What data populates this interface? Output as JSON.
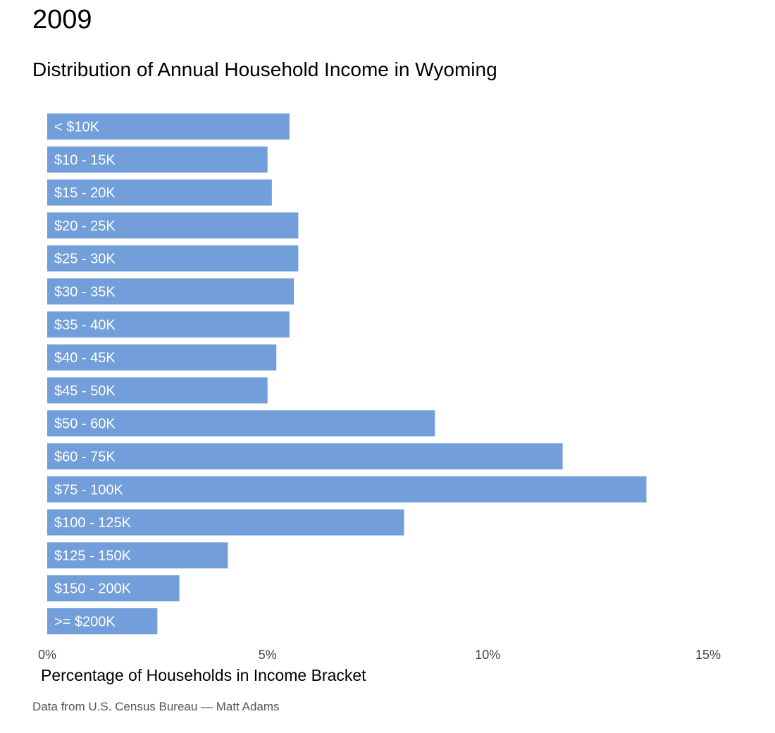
{
  "header": {
    "year": "2009",
    "title": "Distribution of Annual Household Income in Wyoming"
  },
  "footer": {
    "caption": "Data from U.S. Census Bureau — Matt Adams"
  },
  "colors": {
    "bar": "#729ed9",
    "bar_label": "#ffffff",
    "tick_label": "#444444",
    "axis_title": "#000000"
  },
  "chart_data": {
    "type": "bar",
    "orientation": "horizontal",
    "xlabel": "Percentage of Households in Income Bracket",
    "ylabel": "",
    "xlim": [
      0,
      15
    ],
    "x_ticks": [
      {
        "value": 0,
        "label": "0%"
      },
      {
        "value": 5,
        "label": "5%"
      },
      {
        "value": 10,
        "label": "10%"
      },
      {
        "value": 15,
        "label": "15%"
      }
    ],
    "grid": false,
    "categories": [
      "< $10K",
      "$10 - 15K",
      "$15 - 20K",
      "$20 - 25K",
      "$25 - 30K",
      "$30 - 35K",
      "$35 - 40K",
      "$40 - 45K",
      "$45 - 50K",
      "$50 - 60K",
      "$60 - 75K",
      "$75 - 100K",
      "$100 - 125K",
      "$125 - 150K",
      "$150 - 200K",
      ">= $200K"
    ],
    "values": [
      5.5,
      5.0,
      5.1,
      5.7,
      5.7,
      5.6,
      5.5,
      5.2,
      5.0,
      8.8,
      11.7,
      13.6,
      8.1,
      4.1,
      3.0,
      2.5
    ]
  }
}
